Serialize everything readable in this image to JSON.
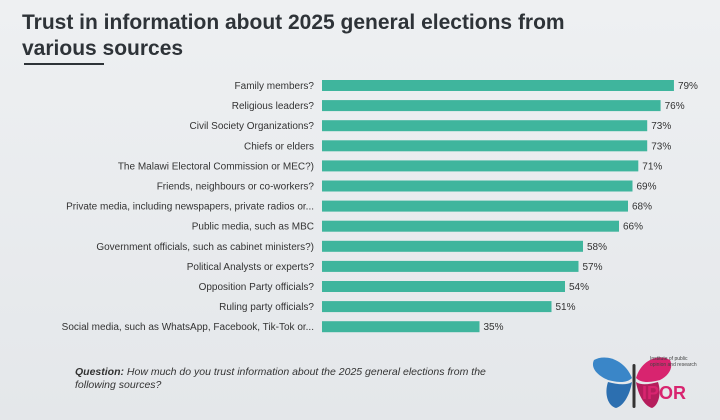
{
  "title": "Trust in information about 2025 general elections from various sources",
  "question": {
    "label": "Question:",
    "text": "How much do you trust information about the 2025 general elections from the following sources?"
  },
  "logo": {
    "small_text": "Institute of public opinion and research",
    "name": "IPOR"
  },
  "colors": {
    "bar": "#3fb59d",
    "text": "#333333"
  },
  "chart_data": {
    "type": "bar",
    "orientation": "horizontal",
    "title": "Trust in information about 2025 general elections from various sources",
    "categories": [
      "Family members?",
      "Religious leaders?",
      "Civil Society Organizations?",
      "Chiefs or elders",
      "The Malawi Electoral Commission or MEC?)",
      "Friends, neighbours or co-workers?",
      "Private media, including newspapers, private radios or...",
      "Public media, such as MBC",
      "Government officials, such as cabinet ministers?)",
      "Political Analysts or experts?",
      "Opposition Party officials?",
      "Ruling party officials?",
      "Social media, such as WhatsApp, Facebook, Tik-Tok or..."
    ],
    "values": [
      79,
      76,
      73,
      73,
      71,
      69,
      68,
      66,
      58,
      57,
      54,
      51,
      35
    ],
    "value_labels": [
      "79%",
      "76%",
      "73%",
      "73%",
      "71%",
      "69%",
      "68%",
      "66%",
      "58%",
      "57%",
      "54%",
      "51%",
      "35%"
    ],
    "xlim": [
      0,
      100
    ],
    "grid": false,
    "legend": "none"
  }
}
